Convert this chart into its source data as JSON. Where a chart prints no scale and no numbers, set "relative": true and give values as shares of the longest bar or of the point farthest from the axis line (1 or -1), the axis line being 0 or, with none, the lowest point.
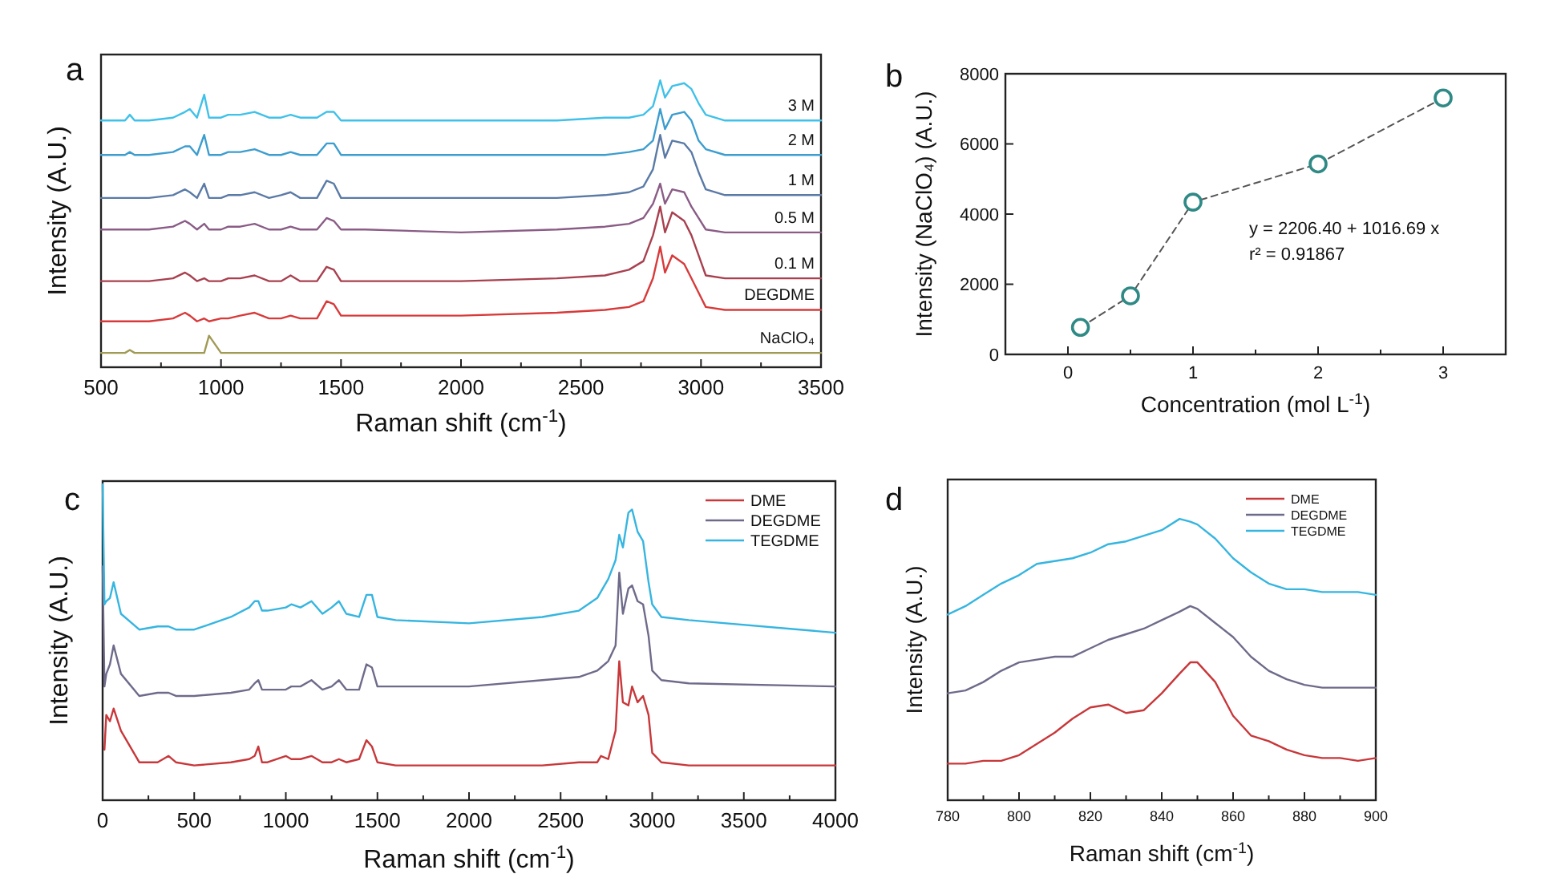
{
  "chart_data": [
    {
      "type": "line",
      "title": "a",
      "xlabel": "Raman shift (cm$^{-1}$)",
      "ylabel": "Intensity (A.U.)",
      "relative": true,
      "xlim": [
        500,
        3500
      ],
      "xticks": [
        500,
        {
          "value": 750,
          "label": null
        },
        1000,
        {
          "value": 1250,
          "label": null
        },
        1500,
        {
          "value": 1750,
          "label": null
        },
        2000,
        {
          "value": 2250,
          "label": null
        },
        2500,
        {
          "value": 2750,
          "label": null
        },
        3000,
        {
          "value": 3250,
          "label": null
        },
        3500
      ],
      "x": [
        500,
        600,
        620,
        640,
        700,
        800,
        850,
        870,
        900,
        930,
        950,
        1000,
        1030,
        1080,
        1140,
        1200,
        1250,
        1290,
        1330,
        1400,
        1440,
        1470,
        1500,
        1600,
        2000,
        2400,
        2600,
        2700,
        2760,
        2800,
        2830,
        2850,
        2880,
        2930,
        2960,
        2990,
        3020,
        3100,
        3500
      ],
      "series": [
        {
          "name": "3 M",
          "color": "#3fc1e9",
          "values": [
            0.86,
            0.86,
            0.88,
            0.86,
            0.86,
            0.87,
            0.89,
            0.9,
            0.87,
            0.95,
            0.87,
            0.87,
            0.88,
            0.88,
            0.89,
            0.87,
            0.87,
            0.88,
            0.87,
            0.87,
            0.89,
            0.89,
            0.86,
            0.86,
            0.86,
            0.86,
            0.87,
            0.87,
            0.88,
            0.91,
            1.0,
            0.94,
            0.98,
            0.99,
            0.97,
            0.92,
            0.88,
            0.86,
            0.86
          ]
        },
        {
          "name": "2 M",
          "color": "#3c9dcf",
          "values": [
            0.74,
            0.74,
            0.75,
            0.74,
            0.74,
            0.75,
            0.77,
            0.77,
            0.74,
            0.81,
            0.74,
            0.74,
            0.75,
            0.75,
            0.76,
            0.74,
            0.74,
            0.75,
            0.74,
            0.74,
            0.78,
            0.78,
            0.74,
            0.74,
            0.74,
            0.74,
            0.74,
            0.75,
            0.76,
            0.79,
            0.9,
            0.83,
            0.88,
            0.89,
            0.86,
            0.79,
            0.76,
            0.74,
            0.74
          ]
        },
        {
          "name": "1 M",
          "color": "#5a7aa6",
          "values": [
            0.59,
            0.59,
            0.59,
            0.59,
            0.59,
            0.6,
            0.62,
            0.61,
            0.59,
            0.64,
            0.59,
            0.59,
            0.6,
            0.6,
            0.61,
            0.59,
            0.6,
            0.61,
            0.59,
            0.59,
            0.65,
            0.64,
            0.59,
            0.59,
            0.59,
            0.59,
            0.6,
            0.61,
            0.63,
            0.69,
            0.81,
            0.73,
            0.79,
            0.78,
            0.75,
            0.68,
            0.62,
            0.6,
            0.6
          ]
        },
        {
          "name": "0.5 M",
          "color": "#8a5c86",
          "values": [
            0.48,
            0.48,
            0.48,
            0.48,
            0.48,
            0.49,
            0.51,
            0.5,
            0.48,
            0.5,
            0.48,
            0.48,
            0.49,
            0.49,
            0.5,
            0.48,
            0.48,
            0.49,
            0.48,
            0.48,
            0.52,
            0.51,
            0.48,
            0.48,
            0.47,
            0.48,
            0.49,
            0.5,
            0.52,
            0.57,
            0.64,
            0.57,
            0.62,
            0.61,
            0.56,
            0.52,
            0.48,
            0.47,
            0.47
          ]
        },
        {
          "name": "0.1 M",
          "color": "#a8404f",
          "values": [
            0.3,
            0.3,
            0.3,
            0.3,
            0.3,
            0.31,
            0.33,
            0.32,
            0.3,
            0.31,
            0.3,
            0.3,
            0.31,
            0.31,
            0.32,
            0.3,
            0.3,
            0.32,
            0.3,
            0.3,
            0.35,
            0.34,
            0.3,
            0.3,
            0.3,
            0.31,
            0.32,
            0.34,
            0.37,
            0.46,
            0.56,
            0.47,
            0.54,
            0.51,
            0.46,
            0.39,
            0.32,
            0.31,
            0.31
          ]
        },
        {
          "name": "DEGDME",
          "color": "#d83a3a",
          "values": [
            0.16,
            0.16,
            0.16,
            0.16,
            0.16,
            0.17,
            0.19,
            0.18,
            0.16,
            0.17,
            0.16,
            0.17,
            0.17,
            0.18,
            0.19,
            0.17,
            0.17,
            0.18,
            0.17,
            0.17,
            0.23,
            0.22,
            0.18,
            0.18,
            0.18,
            0.19,
            0.2,
            0.21,
            0.23,
            0.31,
            0.42,
            0.33,
            0.39,
            0.36,
            0.31,
            0.26,
            0.21,
            0.2,
            0.2
          ]
        },
        {
          "name": "NaClO₄",
          "color": "#a09a55",
          "values": [
            0.05,
            0.05,
            0.06,
            0.05,
            0.05,
            0.05,
            0.05,
            0.05,
            0.05,
            0.05,
            0.11,
            0.05,
            0.05,
            0.05,
            0.05,
            0.05,
            0.05,
            0.05,
            0.05,
            0.05,
            0.05,
            0.05,
            0.05,
            0.05,
            0.05,
            0.05,
            0.05,
            0.05,
            0.05,
            0.05,
            0.05,
            0.05,
            0.05,
            0.05,
            0.05,
            0.05,
            0.05,
            0.05,
            0.05
          ]
        }
      ]
    },
    {
      "type": "line",
      "title": "b",
      "xlabel": "Concentration (mol L$^{-1}$)",
      "ylabel": "Intensity (NaClO₄) (A.U.)",
      "marker": "circle",
      "line_style": "dashed",
      "xlim": [
        -0.5,
        3.5
      ],
      "xticks": [
        0,
        {
          "value": 0.5,
          "label": null
        },
        1,
        {
          "value": 1.5,
          "label": null
        },
        2,
        {
          "value": 2.5,
          "label": null
        },
        3
      ],
      "ylim": [
        0,
        8000
      ],
      "yticks": [
        0,
        2000,
        4000,
        6000,
        8000
      ],
      "x": [
        0.1,
        0.5,
        1,
        2,
        3
      ],
      "series": [
        {
          "color": "#2f8a86",
          "values": [
            770,
            1670,
            4340,
            5430,
            7310
          ]
        }
      ],
      "annotations": [
        "y = 2206.40 + 1016.69 x",
        "r² = 0.91867"
      ]
    },
    {
      "type": "line",
      "title": "c",
      "xlabel": "Raman shift (cm$^{-1}$)",
      "ylabel": "Intensity (A.U.)",
      "relative": true,
      "legend": "top right",
      "xlim": [
        0,
        4000
      ],
      "xticks": [
        0,
        {
          "value": 250,
          "label": null
        },
        500,
        {
          "value": 750,
          "label": null
        },
        1000,
        {
          "value": 1250,
          "label": null
        },
        1500,
        {
          "value": 1750,
          "label": null
        },
        2000,
        {
          "value": 2250,
          "label": null
        },
        2500,
        {
          "value": 2750,
          "label": null
        },
        3000,
        {
          "value": 3250,
          "label": null
        },
        3500,
        {
          "value": 3750,
          "label": null
        },
        4000
      ],
      "x": [
        0,
        10,
        20,
        40,
        60,
        100,
        200,
        300,
        360,
        400,
        500,
        700,
        800,
        830,
        850,
        870,
        900,
        1000,
        1030,
        1080,
        1140,
        1200,
        1250,
        1290,
        1330,
        1400,
        1440,
        1470,
        1500,
        1600,
        2000,
        2400,
        2600,
        2700,
        2720,
        2760,
        2800,
        2820,
        2840,
        2870,
        2890,
        2920,
        2950,
        2980,
        3000,
        3050,
        3200,
        4000
      ],
      "series": [
        {
          "name": "DME",
          "color": "#c8373a",
          "values": [
            null,
            0.16,
            0.27,
            0.25,
            0.29,
            0.22,
            0.12,
            0.12,
            0.14,
            0.12,
            0.11,
            0.12,
            0.13,
            0.14,
            0.17,
            0.12,
            0.12,
            0.14,
            0.13,
            0.13,
            0.14,
            0.12,
            0.12,
            0.13,
            0.12,
            0.13,
            0.19,
            0.17,
            0.12,
            0.11,
            0.11,
            0.11,
            0.12,
            0.12,
            0.14,
            0.13,
            0.22,
            0.44,
            0.31,
            0.3,
            0.36,
            0.31,
            0.33,
            0.27,
            0.15,
            0.12,
            0.11,
            0.11
          ]
        },
        {
          "name": "DEGDME",
          "color": "#6e6b8a",
          "values": [
            0.74,
            0.36,
            0.4,
            0.43,
            0.49,
            0.4,
            0.33,
            0.34,
            0.34,
            0.33,
            0.33,
            0.34,
            0.35,
            0.37,
            0.38,
            0.35,
            0.35,
            0.35,
            0.36,
            0.36,
            0.38,
            0.35,
            0.36,
            0.38,
            0.35,
            0.35,
            0.43,
            0.42,
            0.36,
            0.36,
            0.36,
            0.38,
            0.39,
            0.41,
            0.42,
            0.44,
            0.49,
            0.72,
            0.59,
            0.67,
            0.68,
            0.63,
            0.62,
            0.52,
            0.41,
            0.38,
            0.37,
            0.36
          ]
        },
        {
          "name": "TEGDME",
          "color": "#35b5e0",
          "values": [
            1.0,
            0.62,
            0.63,
            0.64,
            0.69,
            0.59,
            0.54,
            0.55,
            0.55,
            0.54,
            0.54,
            0.58,
            0.61,
            0.63,
            0.63,
            0.6,
            0.6,
            0.61,
            0.62,
            0.61,
            0.63,
            0.59,
            0.61,
            0.63,
            0.59,
            0.58,
            0.65,
            0.65,
            0.58,
            0.57,
            0.56,
            0.58,
            0.6,
            0.64,
            0.66,
            0.7,
            0.76,
            0.84,
            0.8,
            0.91,
            0.92,
            0.85,
            0.82,
            0.69,
            0.62,
            0.58,
            0.57,
            0.53
          ]
        }
      ]
    },
    {
      "type": "line",
      "title": "d",
      "xlabel": "Raman shift (cm$^{-1}$)",
      "ylabel": "Intensity (A.U.)",
      "relative": true,
      "legend": "top right",
      "xlim": [
        780,
        900
      ],
      "xticks": [
        780,
        {
          "value": 790,
          "label": null
        },
        800,
        {
          "value": 810,
          "label": null
        },
        820,
        {
          "value": 830,
          "label": null
        },
        840,
        {
          "value": 850,
          "label": null
        },
        860,
        {
          "value": 870,
          "label": null
        },
        880,
        {
          "value": 890,
          "label": null
        },
        900
      ],
      "x": [
        780,
        785,
        790,
        795,
        800,
        805,
        810,
        815,
        820,
        825,
        830,
        835,
        840,
        845,
        848,
        850,
        855,
        860,
        865,
        870,
        875,
        880,
        885,
        890,
        895,
        900
      ],
      "series": [
        {
          "name": "DME",
          "color": "#c8373a",
          "values": [
            0.13,
            0.13,
            0.14,
            0.14,
            0.16,
            0.2,
            0.24,
            0.29,
            0.33,
            0.34,
            0.31,
            0.32,
            0.38,
            0.45,
            0.49,
            0.49,
            0.42,
            0.3,
            0.23,
            0.21,
            0.18,
            0.16,
            0.15,
            0.15,
            0.14,
            0.15
          ]
        },
        {
          "name": "DEGDME",
          "color": "#6e6b8a",
          "values": [
            0.38,
            0.39,
            0.42,
            0.46,
            0.49,
            0.5,
            0.51,
            0.51,
            0.54,
            0.57,
            0.59,
            0.61,
            0.64,
            0.67,
            0.69,
            0.68,
            0.63,
            0.58,
            0.51,
            0.46,
            0.43,
            0.41,
            0.4,
            0.4,
            0.4,
            0.4
          ]
        },
        {
          "name": "TEGDME",
          "color": "#35b5e0",
          "values": [
            0.66,
            0.69,
            0.73,
            0.77,
            0.8,
            0.84,
            0.85,
            0.86,
            0.88,
            0.91,
            0.92,
            0.94,
            0.96,
            1.0,
            0.99,
            0.98,
            0.93,
            0.86,
            0.81,
            0.77,
            0.75,
            0.75,
            0.74,
            0.74,
            0.74,
            0.73
          ]
        }
      ]
    }
  ]
}
